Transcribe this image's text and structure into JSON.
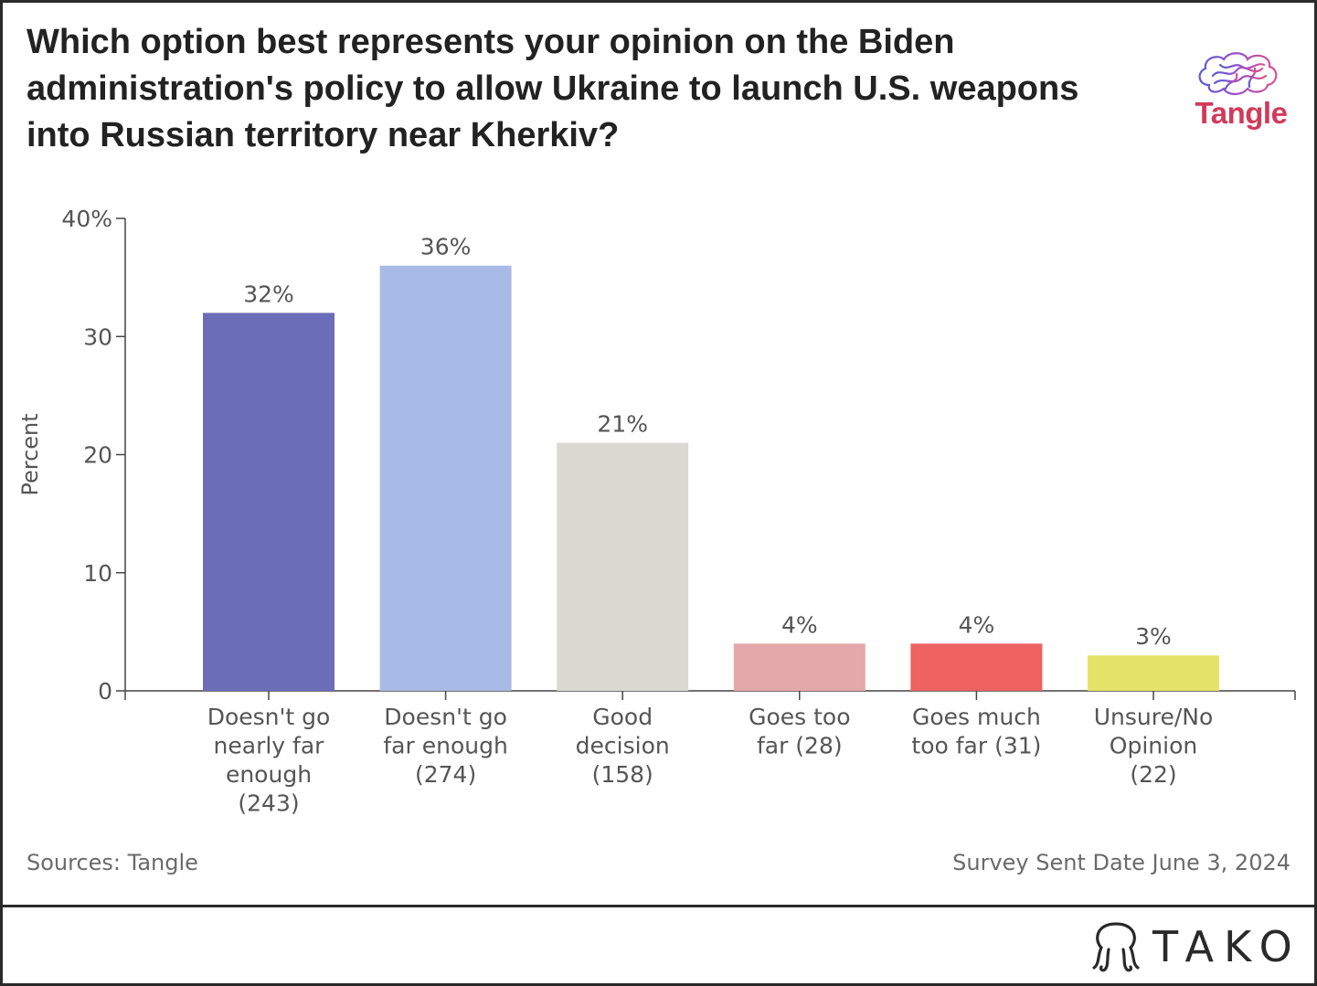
{
  "title": "Which option best represents your opinion on the Biden administration's policy to allow Ukraine to launch U.S. weapons into Russian territory near Kherkiv?",
  "brand": {
    "name": "Tangle",
    "color": "#d13a5a"
  },
  "footer": {
    "source": "Sources: Tangle",
    "date": "Survey Sent Date June 3, 2024",
    "provider": "TAKO",
    "provider_icon": "tako-octopus-icon"
  },
  "chart_data": {
    "type": "bar",
    "title": "Which option best represents your opinion on the Biden administration's policy to allow Ukraine to launch U.S. weapons into Russian territory near Kherkiv?",
    "xlabel": "",
    "ylabel": "Percent",
    "ylim": [
      0,
      40
    ],
    "yticks": [
      0,
      10,
      20,
      30,
      40
    ],
    "ytick_labels": [
      "0",
      "10",
      "20",
      "30",
      "40%"
    ],
    "grid": false,
    "categories": [
      "Doesn't go nearly far enough (243)",
      "Doesn't go far enough (274)",
      "Good decision (158)",
      "Goes too far (28)",
      "Goes much too far (31)",
      "Unsure/No Opinion (22)"
    ],
    "category_lines": [
      [
        "Doesn't go",
        "nearly far",
        "enough",
        "(243)"
      ],
      [
        "Doesn't go",
        "far enough",
        "(274)"
      ],
      [
        "Good",
        "decision",
        "(158)"
      ],
      [
        "Goes too",
        "far (28)"
      ],
      [
        "Goes much",
        "too far (31)"
      ],
      [
        "Unsure/No",
        "Opinion",
        "(22)"
      ]
    ],
    "values": [
      32,
      36,
      21,
      4,
      4,
      3
    ],
    "data_labels": [
      "32%",
      "36%",
      "21%",
      "4%",
      "4%",
      "3%"
    ],
    "colors": [
      "#6b6db8",
      "#a8bbe6",
      "#d9d9d2",
      "#e4a8aa",
      "#ee6262",
      "#e6e468"
    ]
  }
}
